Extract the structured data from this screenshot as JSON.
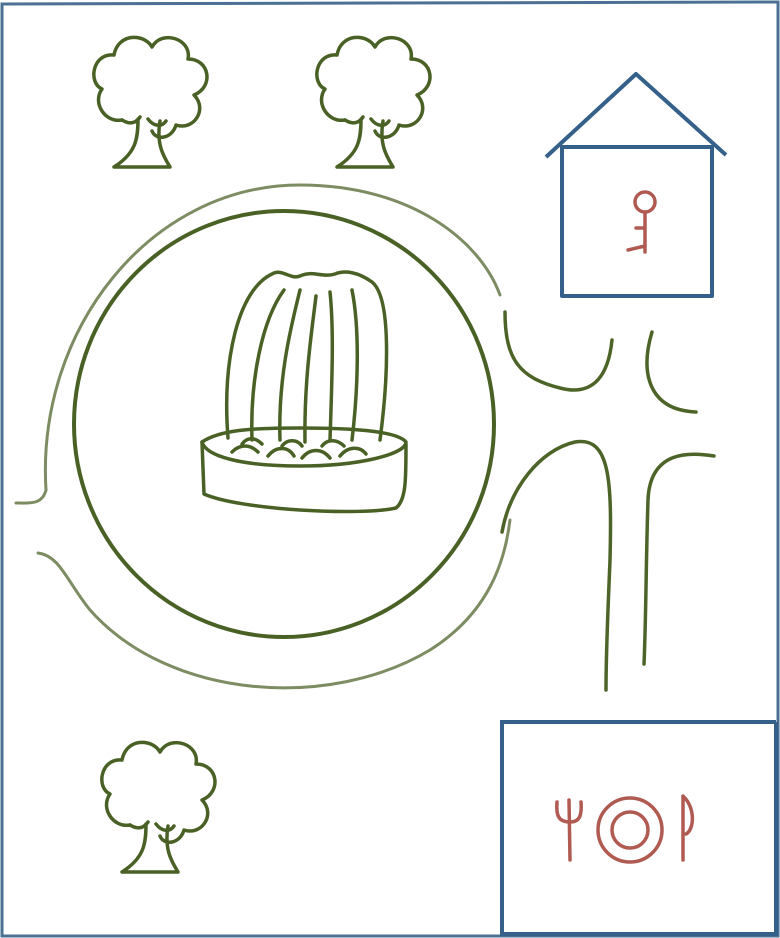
{
  "map": {
    "type": "hand-drawn park map",
    "features": [
      {
        "id": "tree-top-left",
        "kind": "tree"
      },
      {
        "id": "tree-top-middle",
        "kind": "tree"
      },
      {
        "id": "tree-bottom-left",
        "kind": "tree"
      },
      {
        "id": "fountain",
        "kind": "fountain"
      },
      {
        "id": "circular-plaza",
        "kind": "ring path"
      },
      {
        "id": "house",
        "kind": "building",
        "icon": "key-icon"
      },
      {
        "id": "restaurant",
        "kind": "building",
        "icon": "cutlery-plate-icon"
      }
    ]
  },
  "colors": {
    "border": "#4a7094",
    "vegetation": "#4a6126",
    "outer_ring": "#7d8c62",
    "building": "#35608a",
    "symbol": "#b05a52"
  }
}
